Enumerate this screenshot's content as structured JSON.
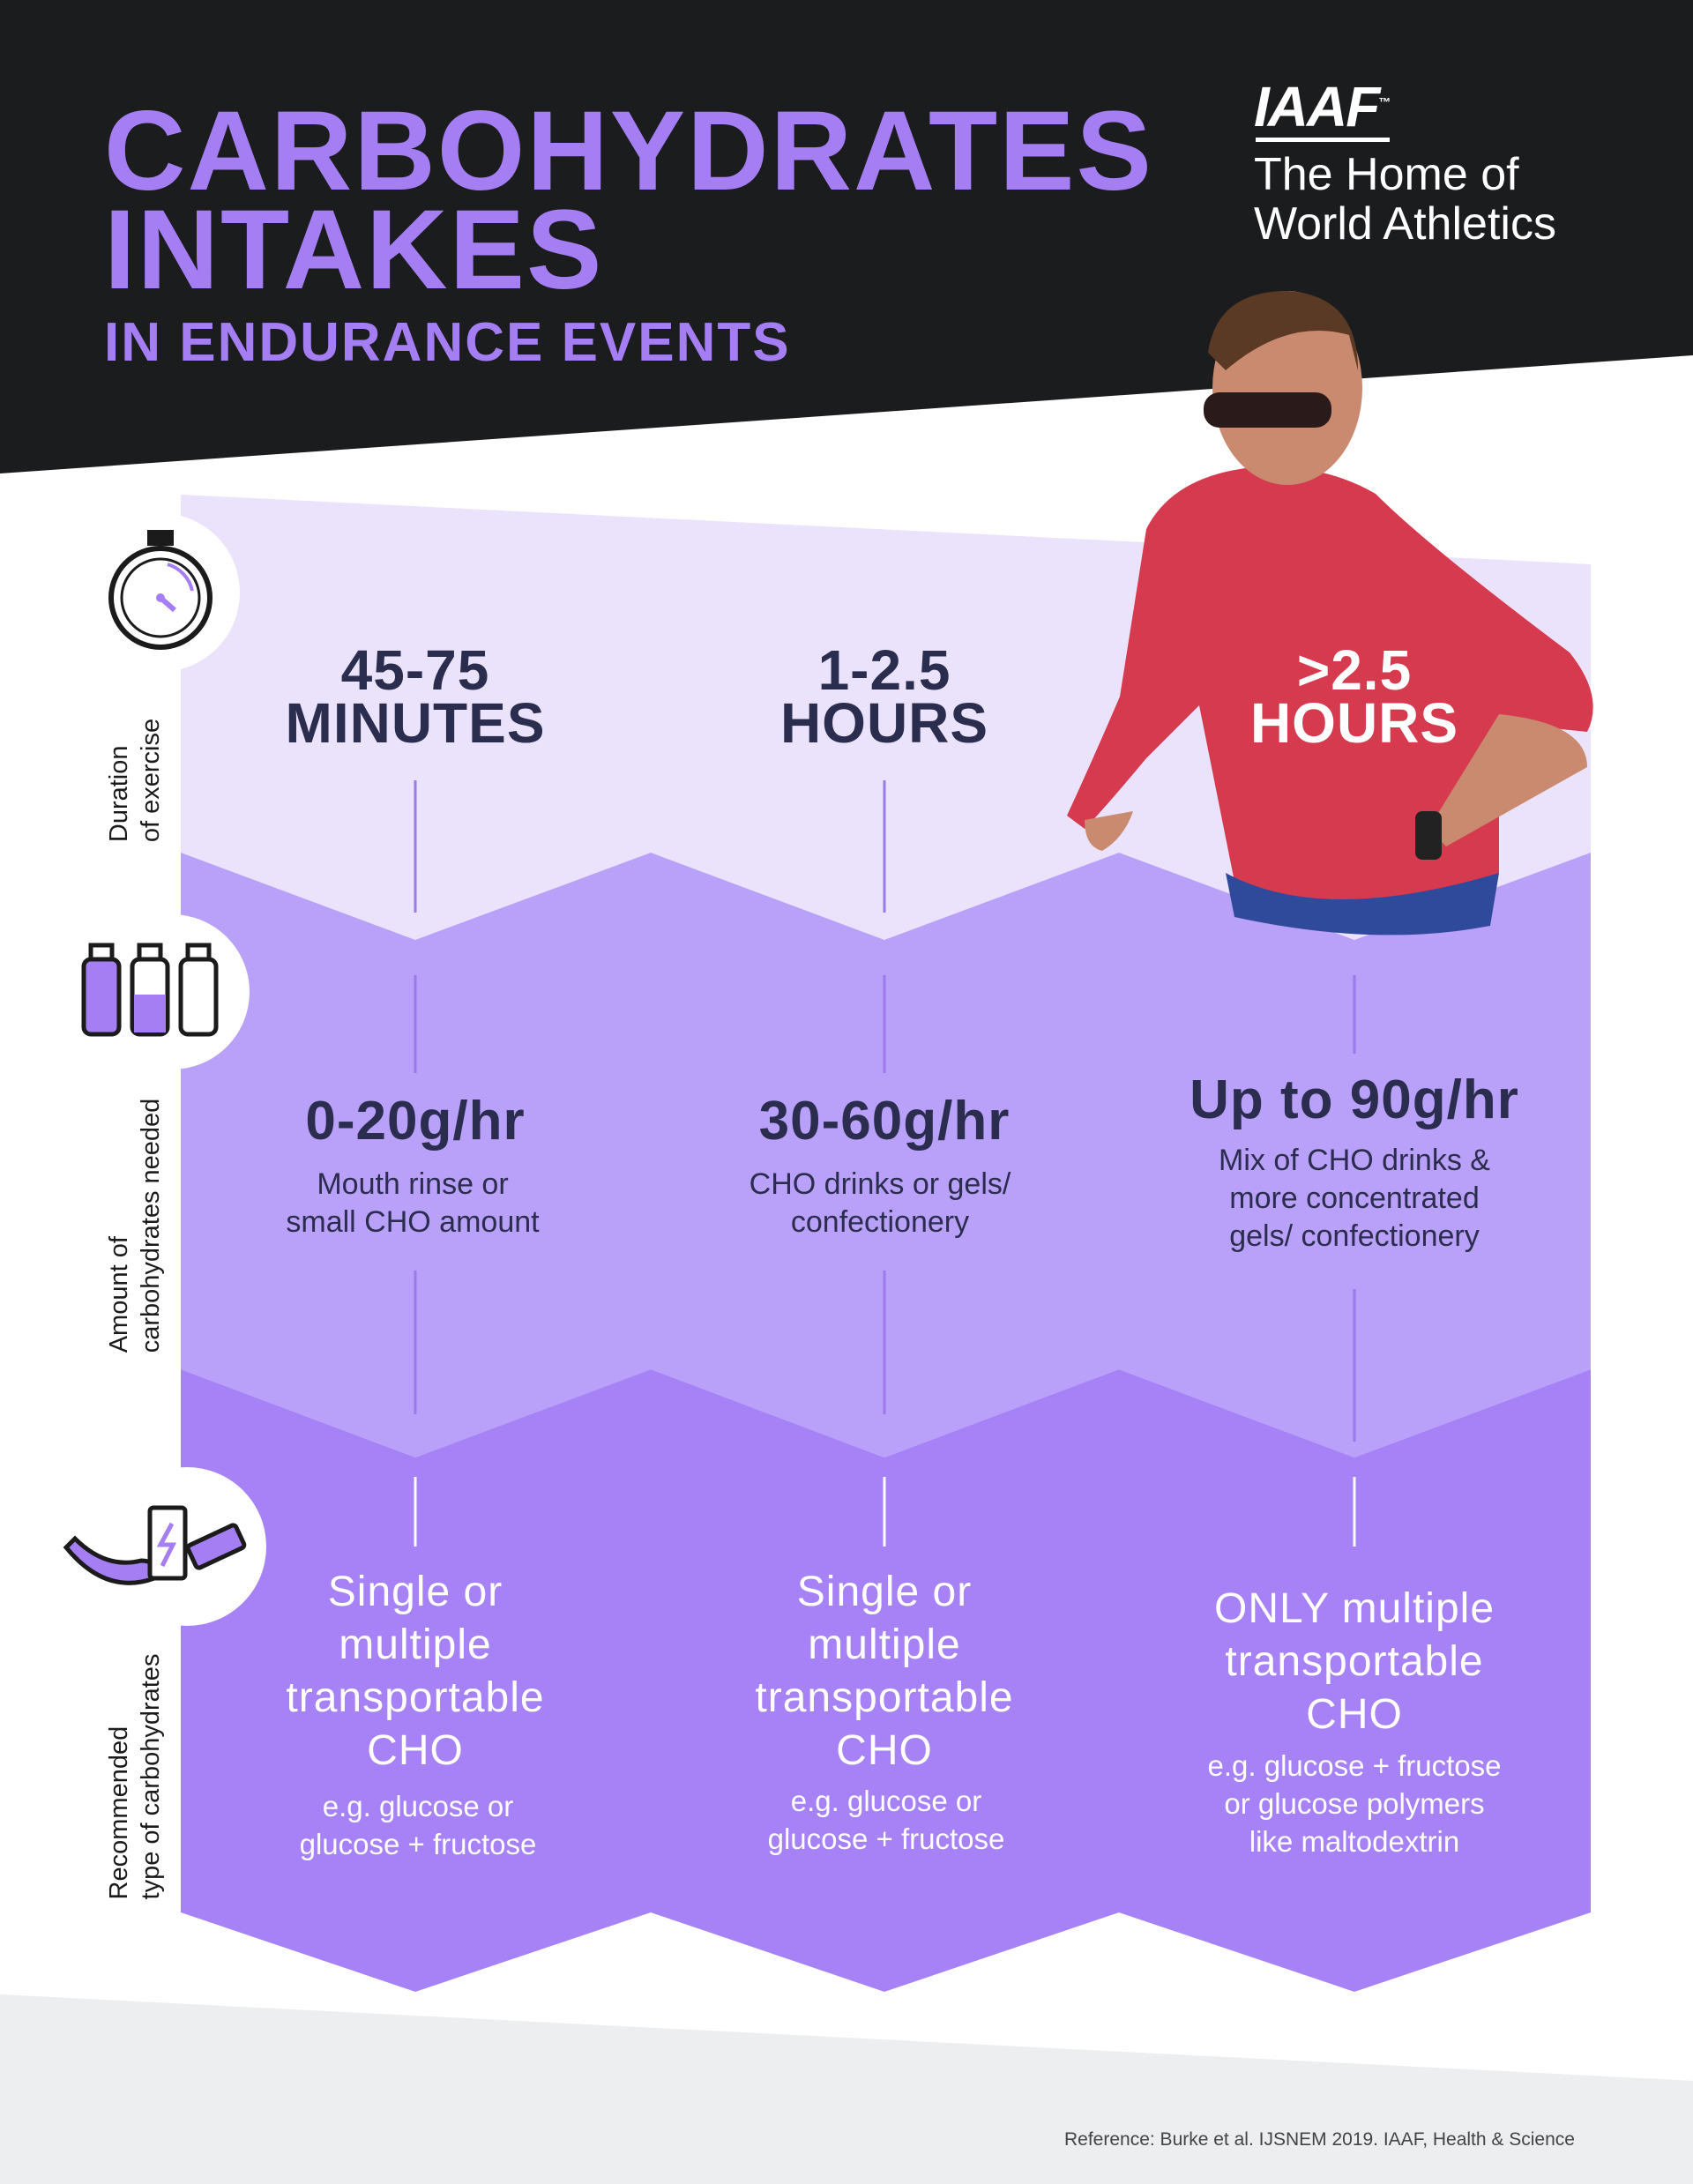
{
  "header": {
    "title_line1": "CARBOHYDRATES",
    "title_line2": "INTAKES",
    "subtitle": "IN ENDURANCE EVENTS"
  },
  "logo": {
    "brand": "IAAF",
    "trademark": "™",
    "tagline_line1": "The Home of",
    "tagline_line2": "World Athletics"
  },
  "row_labels": {
    "duration": [
      "Duration",
      "of exercise"
    ],
    "amount": [
      "Amount of",
      "carbohydrates needed"
    ],
    "type": [
      "Recommended",
      "type of carbohydrates"
    ]
  },
  "columns": [
    {
      "duration": [
        "45-75",
        "MINUTES"
      ],
      "amount": "0-20g/hr",
      "amount_note": [
        "Mouth rinse or",
        "small CHO amount"
      ],
      "type": [
        "Single or",
        "multiple",
        "transportable",
        "CHO"
      ],
      "examples": [
        "e.g. glucose or",
        "glucose + fructose"
      ]
    },
    {
      "duration": [
        "1-2.5",
        "HOURS"
      ],
      "amount": "30-60g/hr",
      "amount_note": [
        "CHO drinks or gels/",
        "confectionery"
      ],
      "type": [
        "Single or",
        "multiple",
        "transportable",
        "CHO"
      ],
      "examples": [
        "e.g. glucose or",
        "glucose + fructose"
      ]
    },
    {
      "duration": [
        ">2.5",
        "HOURS"
      ],
      "amount": "Up to 90g/hr",
      "amount_note": [
        "Mix of CHO drinks &",
        "more concentrated",
        "gels/ confectionery"
      ],
      "type": [
        "ONLY multiple",
        "transportable",
        "CHO"
      ],
      "examples": [
        "e.g. glucose + fructose",
        "or glucose polymers",
        "like maltodextrin"
      ]
    }
  ],
  "footer": {
    "reference": "Reference: Burke et al. IJSNEM 2019. IAAF, Health  & Science"
  },
  "colors": {
    "dark": "#1b1c1e",
    "accent": "#a57ef4",
    "band_light": "#ebe3fb",
    "band_mid": "#b9a0f8",
    "band_dark": "#a682f6",
    "text_dark": "#2b2d4f",
    "footer_bg": "#eceeef"
  }
}
